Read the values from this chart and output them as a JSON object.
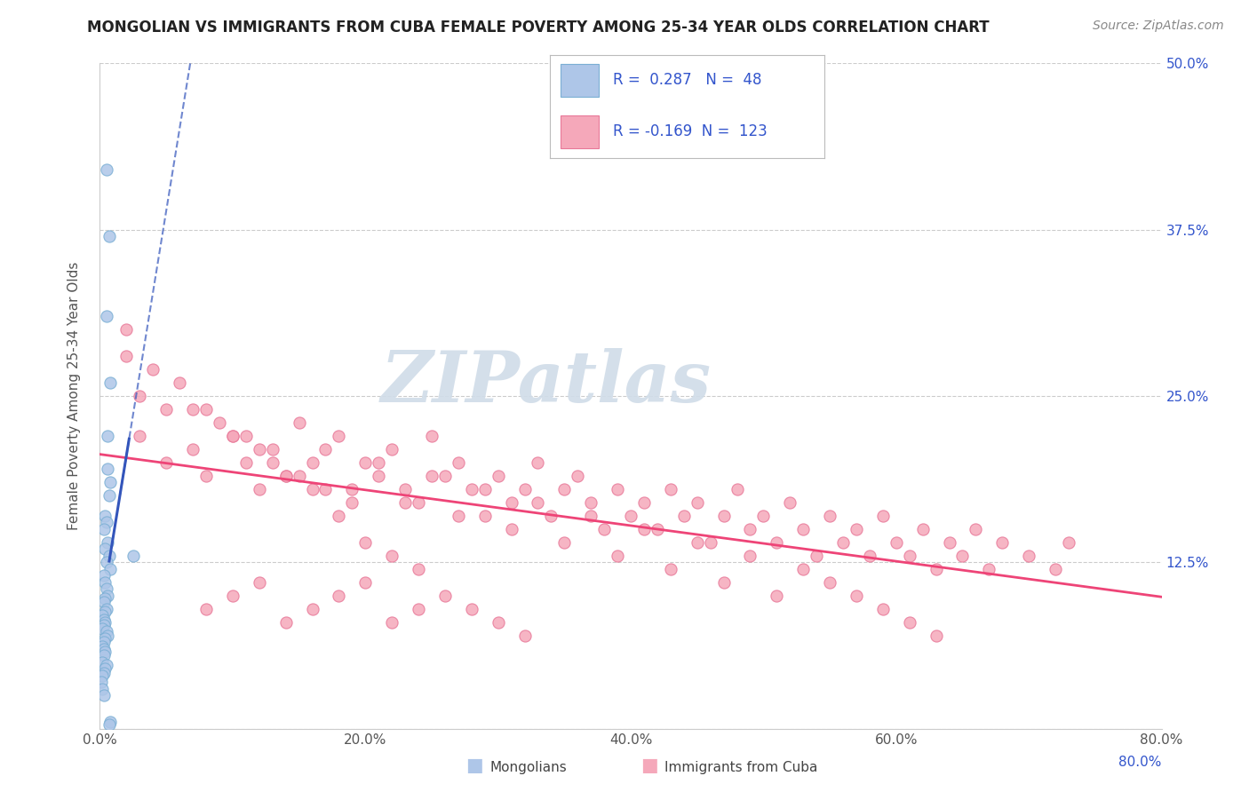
{
  "title": "MONGOLIAN VS IMMIGRANTS FROM CUBA FEMALE POVERTY AMONG 25-34 YEAR OLDS CORRELATION CHART",
  "source": "Source: ZipAtlas.com",
  "xlim": [
    0.0,
    0.8
  ],
  "ylim": [
    0.0,
    0.5
  ],
  "mongolian_R": 0.287,
  "mongolian_N": 48,
  "cuba_R": -0.169,
  "cuba_N": 123,
  "mongolian_color": "#aec6e8",
  "mongolian_edge": "#7aafd4",
  "cuba_color": "#f5a8ba",
  "cuba_edge": "#e87898",
  "mongolian_trend_color": "#3355bb",
  "cuba_trend_color": "#ee4477",
  "grid_color": "#cccccc",
  "background_color": "#ffffff",
  "watermark_text": "ZIPatlas",
  "watermark_color": "#d0dce8",
  "ylabel": "Female Poverty Among 25-34 Year Olds",
  "legend_label_mongolian": "Mongolians",
  "legend_label_cuba": "Immigrants from Cuba",
  "right_axis_color": "#3355cc",
  "x_ticks": [
    0.0,
    0.2,
    0.4,
    0.6,
    0.8
  ],
  "x_tick_labels": [
    "0.0%",
    "20.0%",
    "40.0%",
    "60.0%",
    "80.0%"
  ],
  "y_ticks": [
    0.0,
    0.125,
    0.25,
    0.375,
    0.5
  ],
  "y_tick_labels_right": [
    "",
    "12.5%",
    "25.0%",
    "37.5%",
    "50.0%"
  ],
  "legend_title_color": "#3355cc",
  "mongolian_x": [
    0.005,
    0.007,
    0.005,
    0.008,
    0.006,
    0.006,
    0.008,
    0.007,
    0.004,
    0.005,
    0.003,
    0.006,
    0.004,
    0.007,
    0.005,
    0.008,
    0.003,
    0.004,
    0.005,
    0.006,
    0.004,
    0.003,
    0.005,
    0.004,
    0.002,
    0.003,
    0.004,
    0.003,
    0.002,
    0.005,
    0.006,
    0.004,
    0.003,
    0.002,
    0.003,
    0.004,
    0.003,
    0.002,
    0.005,
    0.004,
    0.003,
    0.002,
    0.001,
    0.002,
    0.003,
    0.025,
    0.008,
    0.007
  ],
  "mongolian_y": [
    0.42,
    0.37,
    0.31,
    0.26,
    0.22,
    0.195,
    0.185,
    0.175,
    0.16,
    0.155,
    0.15,
    0.14,
    0.135,
    0.13,
    0.125,
    0.12,
    0.115,
    0.11,
    0.105,
    0.1,
    0.098,
    0.095,
    0.09,
    0.088,
    0.085,
    0.082,
    0.08,
    0.078,
    0.075,
    0.073,
    0.07,
    0.068,
    0.065,
    0.062,
    0.06,
    0.058,
    0.055,
    0.05,
    0.048,
    0.045,
    0.042,
    0.04,
    0.035,
    0.03,
    0.025,
    0.13,
    0.005,
    0.003
  ],
  "cuba_x": [
    0.02,
    0.03,
    0.05,
    0.07,
    0.08,
    0.1,
    0.11,
    0.12,
    0.13,
    0.14,
    0.15,
    0.16,
    0.17,
    0.18,
    0.19,
    0.2,
    0.21,
    0.22,
    0.23,
    0.24,
    0.25,
    0.26,
    0.27,
    0.28,
    0.29,
    0.3,
    0.31,
    0.32,
    0.33,
    0.34,
    0.35,
    0.36,
    0.37,
    0.38,
    0.39,
    0.4,
    0.41,
    0.42,
    0.43,
    0.44,
    0.45,
    0.46,
    0.47,
    0.48,
    0.49,
    0.5,
    0.51,
    0.52,
    0.53,
    0.54,
    0.55,
    0.56,
    0.57,
    0.58,
    0.59,
    0.6,
    0.61,
    0.62,
    0.63,
    0.64,
    0.65,
    0.66,
    0.67,
    0.68,
    0.7,
    0.72,
    0.73,
    0.08,
    0.1,
    0.12,
    0.14,
    0.16,
    0.18,
    0.2,
    0.22,
    0.24,
    0.03,
    0.05,
    0.07,
    0.09,
    0.11,
    0.13,
    0.15,
    0.17,
    0.19,
    0.21,
    0.23,
    0.25,
    0.27,
    0.29,
    0.31,
    0.33,
    0.35,
    0.37,
    0.39,
    0.41,
    0.43,
    0.45,
    0.47,
    0.49,
    0.51,
    0.53,
    0.55,
    0.57,
    0.59,
    0.61,
    0.63,
    0.02,
    0.04,
    0.06,
    0.08,
    0.1,
    0.12,
    0.14,
    0.16,
    0.18,
    0.2,
    0.22,
    0.24,
    0.26,
    0.28,
    0.3,
    0.32
  ],
  "cuba_y": [
    0.28,
    0.22,
    0.2,
    0.24,
    0.19,
    0.22,
    0.2,
    0.18,
    0.21,
    0.19,
    0.23,
    0.2,
    0.18,
    0.22,
    0.17,
    0.2,
    0.19,
    0.21,
    0.18,
    0.17,
    0.22,
    0.19,
    0.2,
    0.18,
    0.16,
    0.19,
    0.17,
    0.18,
    0.2,
    0.16,
    0.18,
    0.19,
    0.17,
    0.15,
    0.18,
    0.16,
    0.17,
    0.15,
    0.18,
    0.16,
    0.17,
    0.14,
    0.16,
    0.18,
    0.15,
    0.16,
    0.14,
    0.17,
    0.15,
    0.13,
    0.16,
    0.14,
    0.15,
    0.13,
    0.16,
    0.14,
    0.13,
    0.15,
    0.12,
    0.14,
    0.13,
    0.15,
    0.12,
    0.14,
    0.13,
    0.12,
    0.14,
    0.09,
    0.1,
    0.11,
    0.08,
    0.09,
    0.1,
    0.11,
    0.08,
    0.09,
    0.25,
    0.24,
    0.21,
    0.23,
    0.22,
    0.2,
    0.19,
    0.21,
    0.18,
    0.2,
    0.17,
    0.19,
    0.16,
    0.18,
    0.15,
    0.17,
    0.14,
    0.16,
    0.13,
    0.15,
    0.12,
    0.14,
    0.11,
    0.13,
    0.1,
    0.12,
    0.11,
    0.1,
    0.09,
    0.08,
    0.07,
    0.3,
    0.27,
    0.26,
    0.24,
    0.22,
    0.21,
    0.19,
    0.18,
    0.16,
    0.14,
    0.13,
    0.12,
    0.1,
    0.09,
    0.08,
    0.07
  ]
}
